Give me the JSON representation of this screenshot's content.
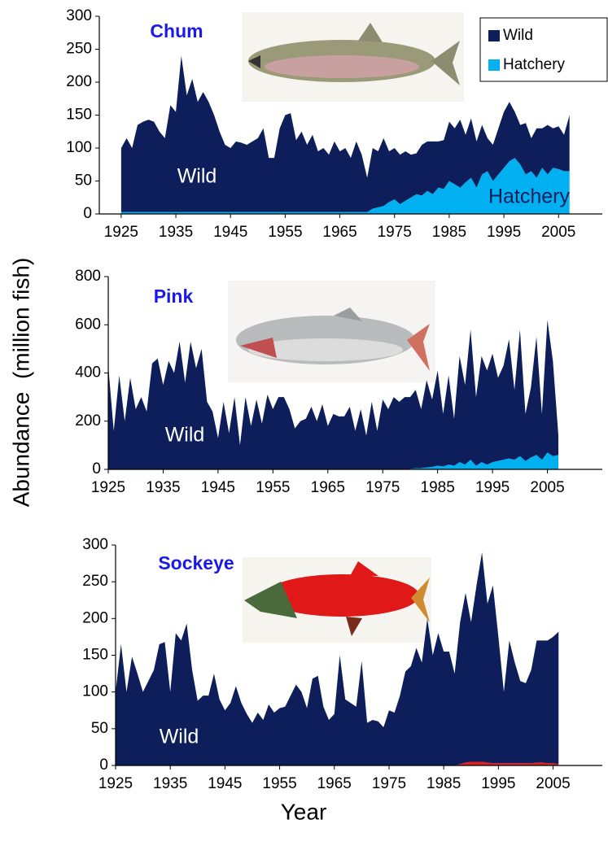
{
  "chart_data": [
    {
      "type": "stacked_area",
      "title": "Chum",
      "legend": "upper right",
      "xlim": [
        1921,
        2013
      ],
      "xticks": [
        1925,
        1935,
        1945,
        1955,
        1965,
        1975,
        1985,
        1995,
        2005
      ],
      "ylim": [
        0,
        300
      ],
      "yticks": [
        0,
        50,
        100,
        150,
        200,
        250,
        300
      ],
      "annotations": [
        "Wild",
        "Hatchery"
      ],
      "x": [
        1925,
        1926,
        1927,
        1928,
        1929,
        1930,
        1931,
        1932,
        1933,
        1934,
        1935,
        1936,
        1937,
        1938,
        1939,
        1940,
        1941,
        1942,
        1943,
        1944,
        1945,
        1946,
        1947,
        1948,
        1949,
        1950,
        1951,
        1952,
        1953,
        1954,
        1955,
        1956,
        1957,
        1958,
        1959,
        1960,
        1961,
        1962,
        1963,
        1964,
        1965,
        1966,
        1967,
        1968,
        1969,
        1970,
        1971,
        1972,
        1973,
        1974,
        1975,
        1976,
        1977,
        1978,
        1979,
        1980,
        1981,
        1982,
        1983,
        1984,
        1985,
        1986,
        1987,
        1988,
        1989,
        1990,
        1991,
        1992,
        1993,
        1994,
        1995,
        1996,
        1997,
        1998,
        1999,
        2000,
        2001,
        2002,
        2003,
        2004,
        2005,
        2006,
        2007
      ],
      "series": [
        {
          "name": "Wild",
          "color": "#0d1e5b",
          "values": [
            97,
            112,
            97,
            132,
            137,
            140,
            137,
            122,
            112,
            162,
            152,
            237,
            177,
            202,
            167,
            182,
            167,
            147,
            122,
            102,
            97,
            107,
            105,
            102,
            107,
            112,
            127,
            82,
            82,
            127,
            147,
            150,
            109,
            122,
            102,
            117,
            92,
            97,
            87,
            107,
            92,
            97,
            82,
            107,
            87,
            52,
            92,
            85,
            103,
            77,
            78,
            75,
            75,
            65,
            62,
            77,
            75,
            80,
            70,
            74,
            90,
            85,
            103,
            72,
            90,
            70,
            75,
            50,
            55,
            70,
            85,
            90,
            70,
            60,
            78,
            50,
            75,
            60,
            75,
            60,
            65,
            55,
            85
          ]
        },
        {
          "name": "Hatchery",
          "color": "#00b0f0",
          "values": [
            3,
            3,
            3,
            3,
            3,
            3,
            3,
            3,
            3,
            3,
            3,
            3,
            3,
            3,
            3,
            3,
            3,
            3,
            3,
            3,
            3,
            3,
            3,
            3,
            3,
            3,
            3,
            3,
            3,
            3,
            3,
            3,
            3,
            3,
            3,
            3,
            3,
            3,
            3,
            3,
            3,
            3,
            3,
            3,
            3,
            3,
            8,
            10,
            12,
            18,
            22,
            15,
            20,
            25,
            30,
            28,
            35,
            30,
            40,
            38,
            50,
            45,
            40,
            48,
            55,
            40,
            60,
            65,
            50,
            60,
            70,
            80,
            85,
            75,
            60,
            65,
            55,
            70,
            60,
            70,
            68,
            65,
            65
          ]
        }
      ]
    },
    {
      "type": "stacked_area",
      "title": "Pink",
      "xlim": [
        1925,
        2015
      ],
      "xticks": [
        1925,
        1935,
        1945,
        1955,
        1965,
        1975,
        1985,
        1995,
        2005
      ],
      "ylim": [
        0,
        800
      ],
      "yticks": [
        0,
        200,
        400,
        600,
        800
      ],
      "annotations": [
        "Wild"
      ],
      "x": [
        1925,
        1926,
        1927,
        1928,
        1929,
        1930,
        1931,
        1932,
        1933,
        1934,
        1935,
        1936,
        1937,
        1938,
        1939,
        1940,
        1941,
        1942,
        1943,
        1944,
        1945,
        1946,
        1947,
        1948,
        1949,
        1950,
        1951,
        1952,
        1953,
        1954,
        1955,
        1956,
        1957,
        1958,
        1959,
        1960,
        1961,
        1962,
        1963,
        1964,
        1965,
        1966,
        1967,
        1968,
        1969,
        1970,
        1971,
        1972,
        1973,
        1974,
        1975,
        1976,
        1977,
        1978,
        1979,
        1980,
        1981,
        1982,
        1983,
        1984,
        1985,
        1986,
        1987,
        1988,
        1989,
        1990,
        1991,
        1992,
        1993,
        1994,
        1995,
        1996,
        1997,
        1998,
        1999,
        2000,
        2001,
        2002,
        2003,
        2004,
        2005,
        2006,
        2007
      ],
      "series": [
        {
          "color": "#0d1e5b",
          "values": [
            430,
            160,
            390,
            200,
            380,
            250,
            300,
            240,
            440,
            460,
            350,
            450,
            400,
            530,
            360,
            530,
            420,
            500,
            280,
            240,
            130,
            280,
            150,
            300,
            100,
            300,
            180,
            290,
            190,
            310,
            250,
            300,
            300,
            250,
            170,
            200,
            210,
            260,
            200,
            270,
            180,
            230,
            220,
            220,
            260,
            160,
            250,
            140,
            280,
            160,
            290,
            250,
            300,
            280,
            300,
            298,
            325,
            245,
            362,
            280,
            395,
            218,
            370,
            195,
            440,
            330,
            540,
            285,
            440,
            390,
            450,
            345,
            390,
            495,
            290,
            525,
            195,
            290,
            490,
            190,
            550,
            395,
            80
          ]
        },
        {
          "color": "#00b0f0",
          "values": [
            0,
            0,
            0,
            0,
            0,
            0,
            0,
            0,
            0,
            0,
            0,
            0,
            0,
            0,
            0,
            0,
            0,
            0,
            0,
            0,
            0,
            0,
            0,
            0,
            0,
            0,
            0,
            0,
            0,
            0,
            0,
            0,
            0,
            0,
            0,
            0,
            0,
            0,
            0,
            0,
            0,
            0,
            0,
            0,
            0,
            0,
            0,
            0,
            0,
            0,
            0,
            0,
            0,
            0,
            0,
            2,
            5,
            5,
            8,
            10,
            15,
            12,
            20,
            15,
            30,
            20,
            40,
            15,
            30,
            20,
            30,
            35,
            40,
            45,
            40,
            55,
            35,
            50,
            60,
            40,
            70,
            55,
            60
          ]
        }
      ]
    },
    {
      "type": "stacked_area",
      "title": "Sockeye",
      "xlim": [
        1925,
        2014
      ],
      "xticks": [
        1925,
        1935,
        1945,
        1955,
        1965,
        1975,
        1985,
        1995,
        2005
      ],
      "ylim": [
        0,
        300
      ],
      "yticks": [
        0,
        50,
        100,
        150,
        200,
        250,
        300
      ],
      "annotations": [
        "Wild"
      ],
      "x": [
        1925,
        1926,
        1927,
        1928,
        1929,
        1930,
        1931,
        1932,
        1933,
        1934,
        1935,
        1936,
        1937,
        1938,
        1939,
        1940,
        1941,
        1942,
        1943,
        1944,
        1945,
        1946,
        1947,
        1948,
        1949,
        1950,
        1951,
        1952,
        1953,
        1954,
        1955,
        1956,
        1957,
        1958,
        1959,
        1960,
        1961,
        1962,
        1963,
        1964,
        1965,
        1966,
        1967,
        1968,
        1969,
        1970,
        1971,
        1972,
        1973,
        1974,
        1975,
        1976,
        1977,
        1978,
        1979,
        1980,
        1981,
        1982,
        1983,
        1984,
        1985,
        1986,
        1987,
        1988,
        1989,
        1990,
        1991,
        1992,
        1993,
        1994,
        1995,
        1996,
        1997,
        1998,
        1999,
        2000,
        2001,
        2002,
        2003,
        2004,
        2005,
        2006
      ],
      "series": [
        {
          "color": "#0d1e5b",
          "values": [
            100,
            165,
            100,
            148,
            125,
            100,
            115,
            130,
            165,
            168,
            100,
            180,
            170,
            193,
            130,
            88,
            95,
            95,
            125,
            90,
            75,
            85,
            108,
            85,
            70,
            58,
            72,
            62,
            83,
            72,
            78,
            80,
            95,
            110,
            100,
            78,
            118,
            122,
            80,
            62,
            70,
            150,
            90,
            85,
            80,
            142,
            58,
            62,
            60,
            52,
            75,
            72,
            95,
            128,
            135,
            160,
            140,
            200,
            150,
            180,
            155,
            155,
            125,
            193,
            231,
            190,
            240,
            285,
            216,
            242,
            172,
            97,
            167,
            137,
            112,
            109,
            127,
            166,
            166,
            167,
            172,
            180
          ]
        },
        {
          "color": "#e02020",
          "values": [
            0,
            0,
            0,
            0,
            0,
            0,
            0,
            0,
            0,
            0,
            0,
            0,
            0,
            0,
            0,
            0,
            0,
            0,
            0,
            0,
            0,
            0,
            0,
            0,
            0,
            0,
            0,
            0,
            0,
            0,
            0,
            0,
            0,
            0,
            0,
            0,
            0,
            0,
            0,
            0,
            0,
            0,
            0,
            0,
            0,
            0,
            0,
            0,
            0,
            0,
            0,
            0,
            0,
            0,
            0,
            0,
            0,
            0,
            0,
            0,
            0,
            0,
            0,
            2,
            4,
            5,
            5,
            5,
            4,
            3,
            3,
            3,
            3,
            3,
            3,
            3,
            3,
            4,
            4,
            3,
            3,
            2
          ]
        }
      ]
    }
  ],
  "ylabel": "Abundance  (million fish)",
  "xlabel": "Year"
}
